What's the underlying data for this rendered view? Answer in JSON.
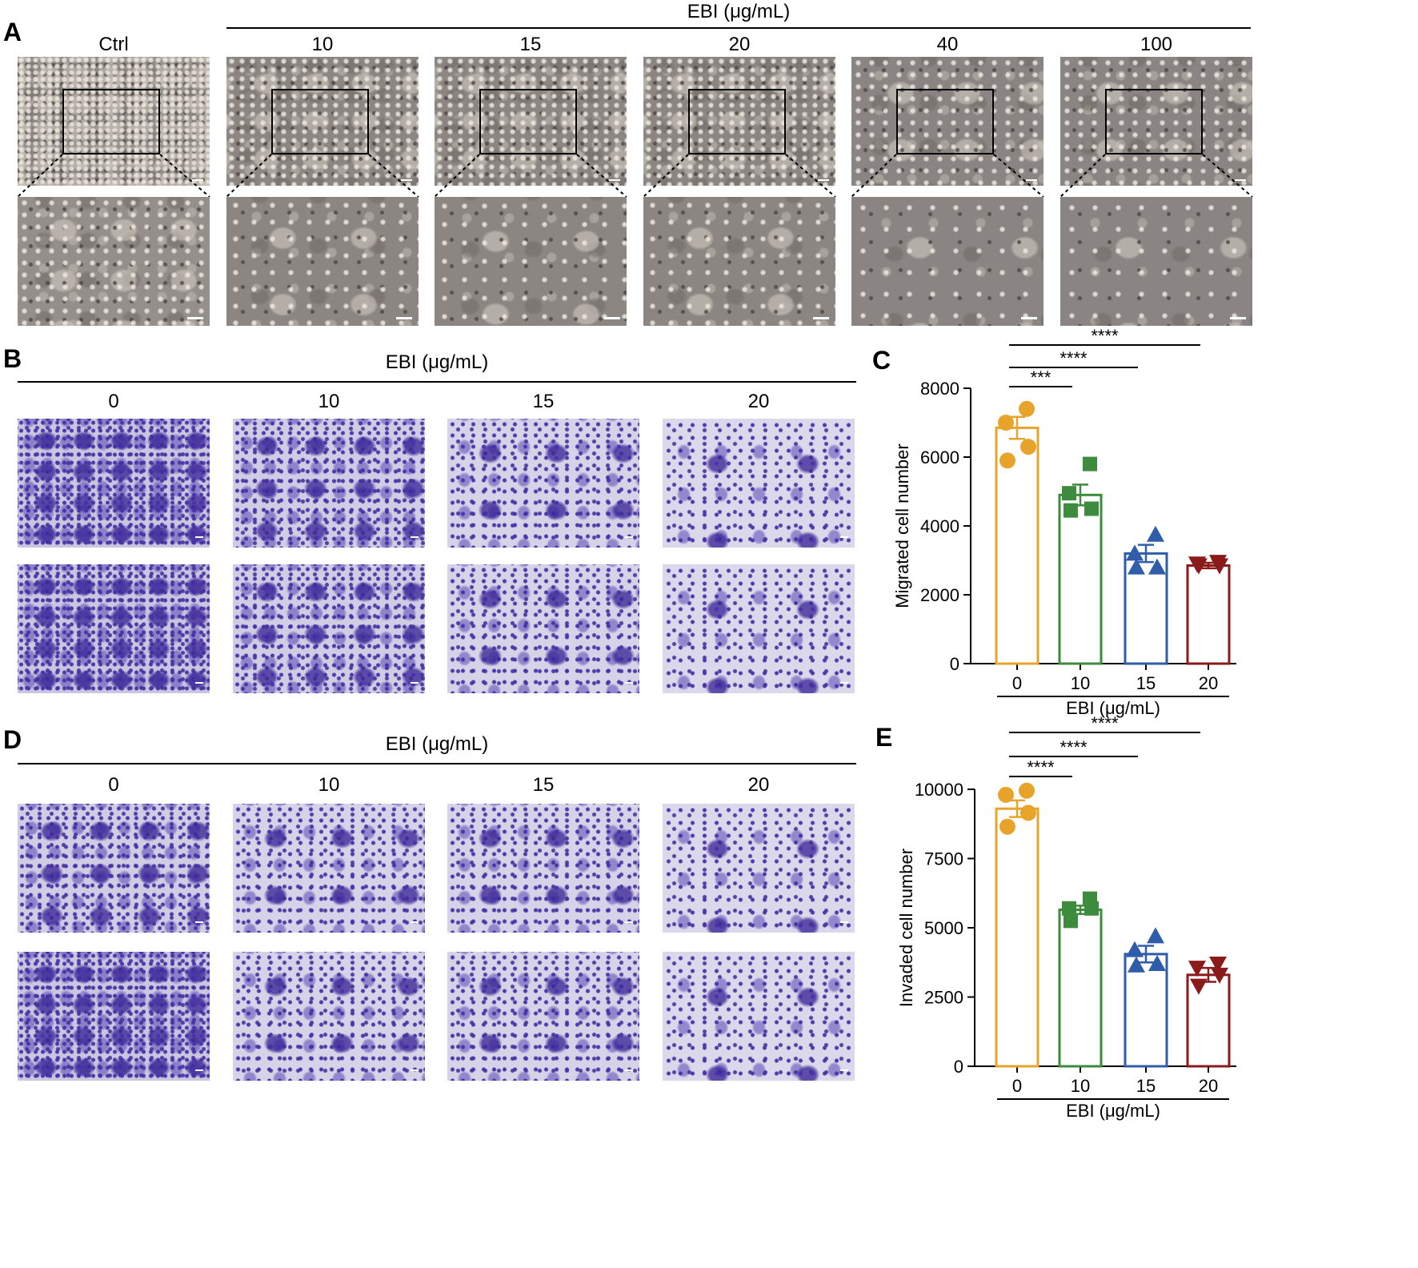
{
  "panels": {
    "a": "A",
    "b": "B",
    "c": "C",
    "d": "D",
    "e": "E"
  },
  "panel_a": {
    "group_header": "EBI (μg/mL)",
    "ctrl_label": "Ctrl",
    "dose_labels": [
      "10",
      "15",
      "20",
      "40",
      "100"
    ]
  },
  "panel_b": {
    "group_header": "EBI (μg/mL)",
    "dose_labels": [
      "0",
      "10",
      "15",
      "20"
    ]
  },
  "panel_d": {
    "group_header": "EBI (μg/mL)",
    "dose_labels": [
      "0",
      "10",
      "15",
      "20"
    ]
  },
  "colors": {
    "dose_0": "#E8A42A",
    "dose_10": "#3D8B3D",
    "dose_15": "#2F5DAA",
    "dose_20": "#8B1A1A"
  },
  "chart_data": [
    {
      "type": "bar",
      "panel": "C",
      "ylabel": "Migrated cell number",
      "xlabel": "EBI (μg/mL)",
      "categories": [
        "0",
        "10",
        "15",
        "20"
      ],
      "values": [
        6850,
        4900,
        3200,
        2850
      ],
      "sem": [
        320,
        300,
        250,
        80
      ],
      "points": [
        [
          7400,
          7000,
          6300,
          5900
        ],
        [
          5800,
          4950,
          4500,
          4450
        ],
        [
          3750,
          3200,
          2800,
          2800
        ],
        [
          2950,
          2900,
          2850,
          2850
        ]
      ],
      "markers": [
        "circle",
        "square",
        "triangle-up",
        "triangle-down"
      ],
      "ylim": [
        0,
        8000
      ],
      "yticks": [
        0,
        2000,
        4000,
        6000,
        8000
      ],
      "significance": [
        {
          "from": "0",
          "to": "10",
          "label": "***"
        },
        {
          "from": "0",
          "to": "15",
          "label": "****"
        },
        {
          "from": "0",
          "to": "20",
          "label": "****"
        }
      ]
    },
    {
      "type": "bar",
      "panel": "E",
      "ylabel": "Invaded cell number",
      "xlabel": "EBI (μg/mL)",
      "categories": [
        "0",
        "10",
        "15",
        "20"
      ],
      "values": [
        9300,
        5650,
        4050,
        3300
      ],
      "sem": [
        300,
        150,
        300,
        250
      ],
      "points": [
        [
          9950,
          9800,
          9150,
          8650
        ],
        [
          6050,
          5700,
          5700,
          5250
        ],
        [
          4700,
          4200,
          3700,
          3650
        ],
        [
          3700,
          3550,
          3300,
          2900
        ]
      ],
      "markers": [
        "circle",
        "square",
        "triangle-up",
        "triangle-down"
      ],
      "ylim": [
        0,
        10000
      ],
      "yticks": [
        0,
        2500,
        5000,
        7500,
        10000
      ],
      "significance": [
        {
          "from": "0",
          "to": "10",
          "label": "****"
        },
        {
          "from": "0",
          "to": "15",
          "label": "****"
        },
        {
          "from": "0",
          "to": "20",
          "label": "****"
        }
      ]
    }
  ]
}
